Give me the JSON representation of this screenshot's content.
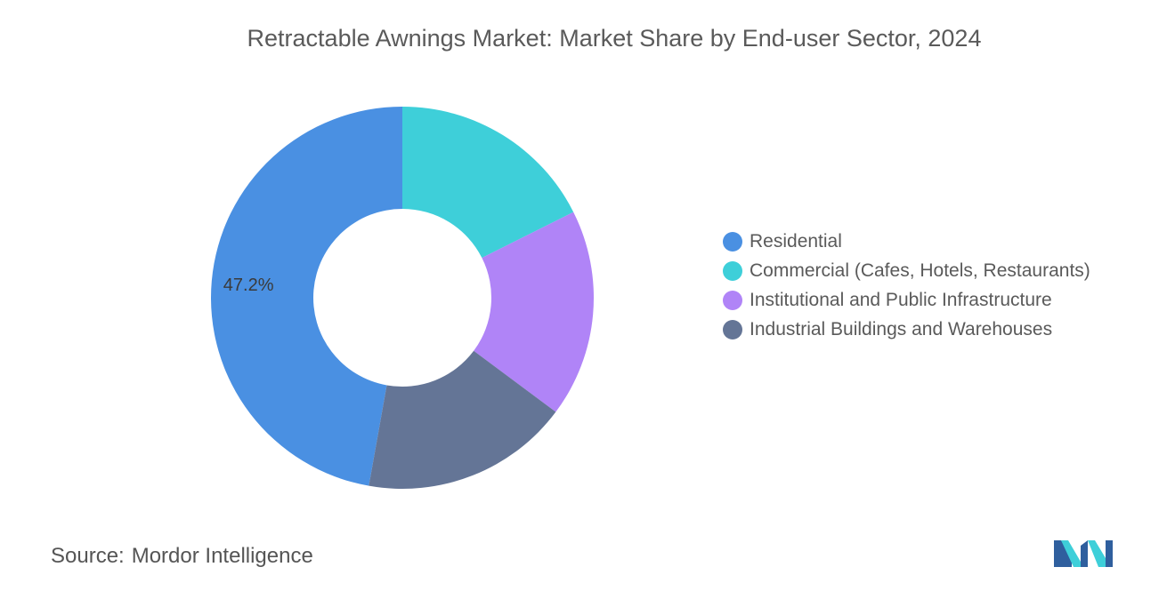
{
  "title": "Retractable Awnings Market: Market Share by End-user Sector, 2024",
  "source": {
    "label": "Source:",
    "name": "Mordor Intelligence"
  },
  "chart_data": {
    "type": "pie",
    "donut": true,
    "title": "Retractable Awnings Market: Market Share by End-user Sector, 2024",
    "legend_position": "right",
    "series": [
      {
        "name": "Residential",
        "value": 47.2,
        "color": "#4a90e2",
        "label": "47.2%"
      },
      {
        "name": "Commercial (Cafes, Hotels, Restaurants)",
        "value": 17.6,
        "color": "#3ecfd9",
        "label": ""
      },
      {
        "name": "Institutional and Public Infrastructure",
        "value": 17.6,
        "color": "#b084f7",
        "label": ""
      },
      {
        "name": "Industrial Buildings and Warehouses",
        "value": 17.6,
        "color": "#647596",
        "label": ""
      }
    ]
  },
  "logo": {
    "icon": "mordor-intelligence-logo-icon",
    "colors": [
      "#2f5f9e",
      "#3ecfd9"
    ]
  }
}
